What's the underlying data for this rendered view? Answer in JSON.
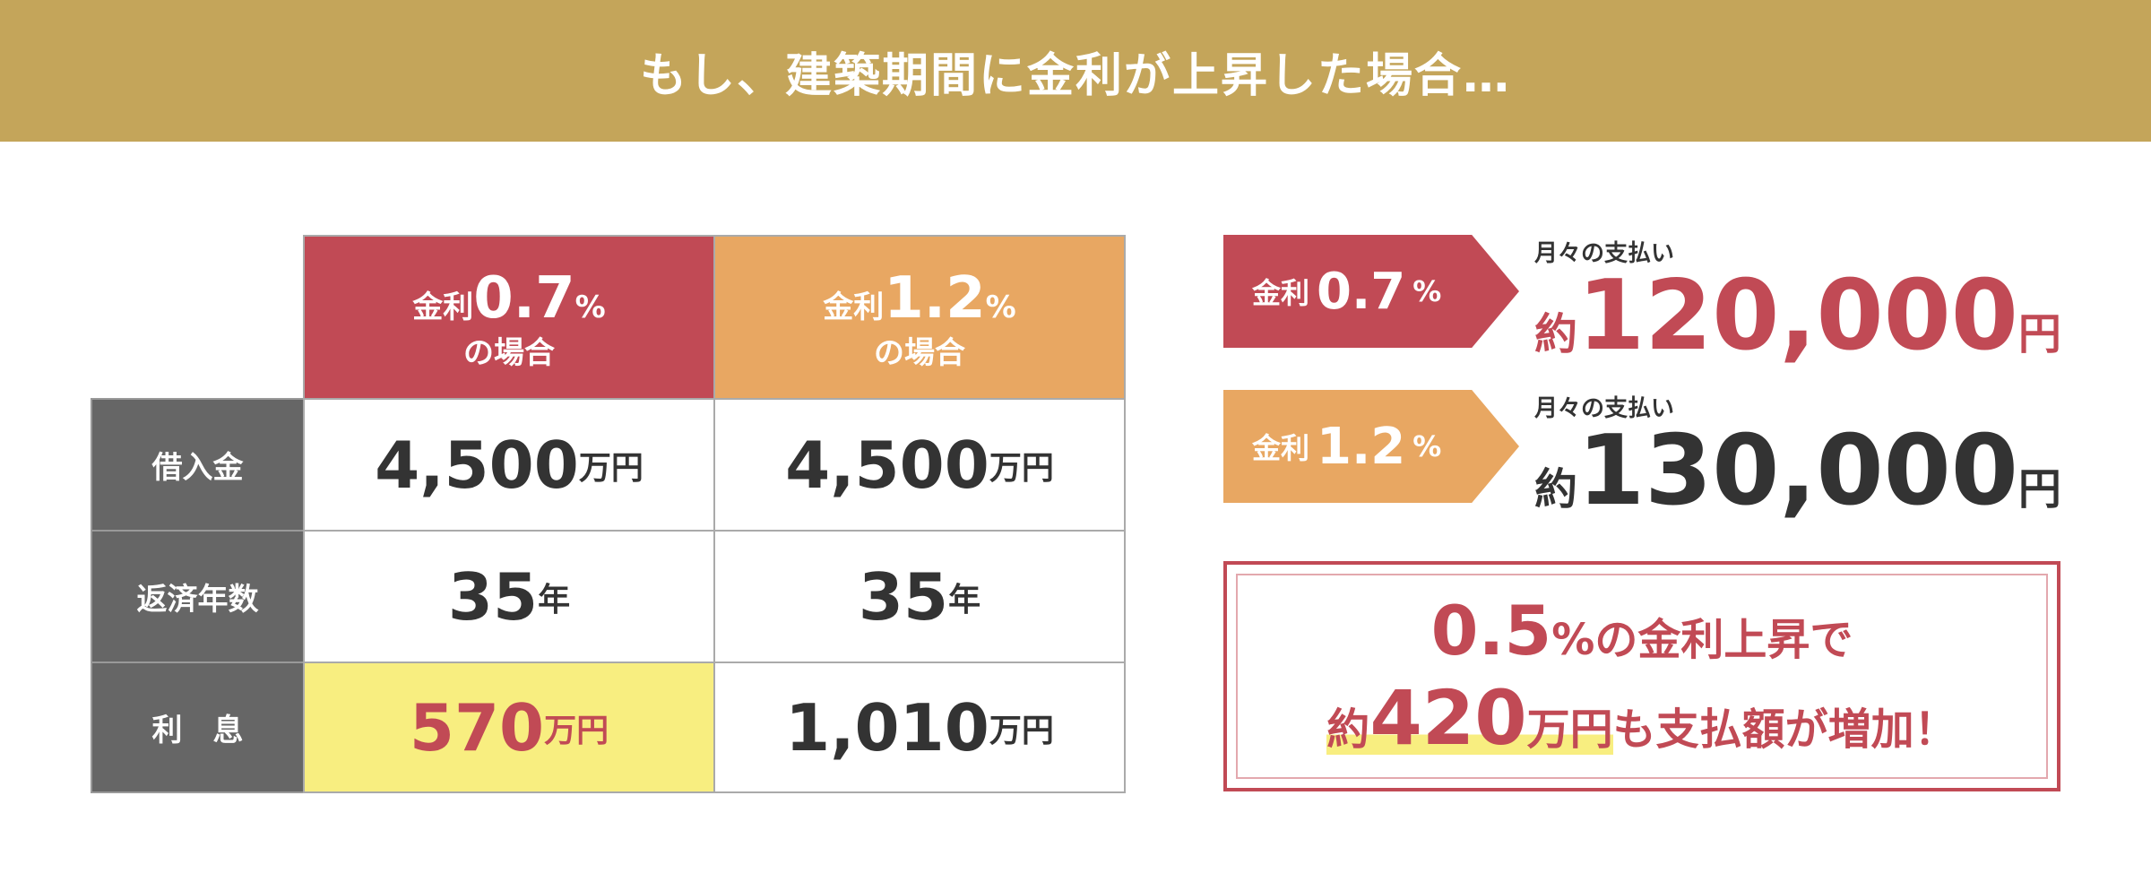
{
  "header": {
    "title": "もし、建築期間に金利が上昇した場合…"
  },
  "colors": {
    "header": "#c4a55a",
    "rate_low": "#c14a55",
    "rate_high": "#e8a762",
    "label": "#666666",
    "highlight": "#f8ee80"
  },
  "table": {
    "columns": [
      {
        "prefix": "金利",
        "rate": "0.7",
        "unit": "%",
        "suffix": "の場合"
      },
      {
        "prefix": "金利",
        "rate": "1.2",
        "unit": "%",
        "suffix": "の場合"
      }
    ],
    "rows": [
      {
        "label": "借入金",
        "values": [
          {
            "num": "4,500",
            "unit": "万円"
          },
          {
            "num": "4,500",
            "unit": "万円"
          }
        ]
      },
      {
        "label": "返済年数",
        "values": [
          {
            "num": "35",
            "unit": "年"
          },
          {
            "num": "35",
            "unit": "年"
          }
        ]
      },
      {
        "label": "利　息",
        "values": [
          {
            "num": "570",
            "unit": "万円"
          },
          {
            "num": "1,010",
            "unit": "万円"
          }
        ]
      }
    ]
  },
  "payments": [
    {
      "prefix": "金利",
      "rate": "0.7",
      "unit": "%",
      "caption": "月々の支払い",
      "approx": "約",
      "amount": "120,000",
      "currency": "円"
    },
    {
      "prefix": "金利",
      "rate": "1.2",
      "unit": "%",
      "caption": "月々の支払い",
      "approx": "約",
      "amount": "130,000",
      "currency": "円"
    }
  ],
  "summary": {
    "num1": "0.5",
    "text1": "%の金利上昇で",
    "approx": "約",
    "num2": "420",
    "unit2": "万円",
    "text2": "も支払額が増加！"
  }
}
